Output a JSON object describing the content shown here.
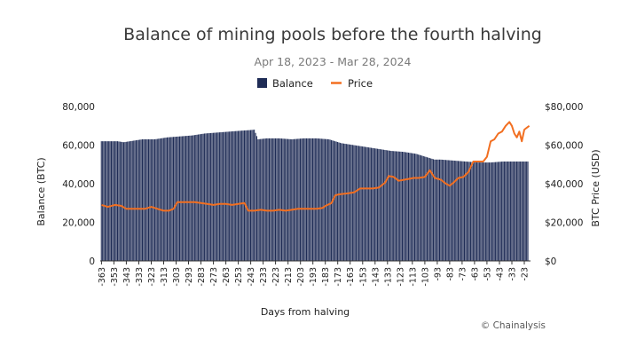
{
  "chart_data": {
    "type": "bar+line",
    "title": "Balance of mining pools before the fourth halving",
    "subtitle": "Apr 18, 2023 - Mar 28, 2024",
    "xlabel": "Days from halving",
    "ylabel_left": "Balance (BTC)",
    "ylabel_right": "BTC Price (USD)",
    "ylim_left": [
      0,
      80000
    ],
    "ylim_right": [
      0,
      80000
    ],
    "yticks_left": [
      "0",
      "20,000",
      "40,000",
      "60,000",
      "80,000"
    ],
    "yticks_right": [
      "$0",
      "$20,000",
      "$40,000",
      "$60,000",
      "$80,000"
    ],
    "xlim": [
      -364,
      -18
    ],
    "x_tick_labels": [
      "-363",
      "-353",
      "-343",
      "-333",
      "-323",
      "-313",
      "-303",
      "-293",
      "-283",
      "-273",
      "-263",
      "-253",
      "-243",
      "-233",
      "-223",
      "-213",
      "-203",
      "-193",
      "-183",
      "-173",
      "-163",
      "-153",
      "-143",
      "-133",
      "-123",
      "-113",
      "-103",
      "-93",
      "-83",
      "-73",
      "-63",
      "-53",
      "-43",
      "-33",
      "-23"
    ],
    "legend": [
      "Balance",
      "Price"
    ],
    "colors": {
      "balance": "#1f2c56",
      "price": "#f26f21",
      "axis": "#333333"
    },
    "series": [
      {
        "name": "Balance",
        "type": "bar",
        "points": [
          [
            -363,
            62000
          ],
          [
            -350,
            62000
          ],
          [
            -345,
            61500
          ],
          [
            -340,
            62000
          ],
          [
            -330,
            63000
          ],
          [
            -320,
            63000
          ],
          [
            -310,
            64000
          ],
          [
            -300,
            64500
          ],
          [
            -290,
            65000
          ],
          [
            -280,
            66000
          ],
          [
            -270,
            66500
          ],
          [
            -260,
            67000
          ],
          [
            -250,
            67500
          ],
          [
            -243,
            67800
          ],
          [
            -240,
            68000
          ],
          [
            -237,
            63000
          ],
          [
            -230,
            63500
          ],
          [
            -220,
            63500
          ],
          [
            -210,
            63000
          ],
          [
            -200,
            63500
          ],
          [
            -190,
            63500
          ],
          [
            -180,
            63000
          ],
          [
            -175,
            62000
          ],
          [
            -170,
            61000
          ],
          [
            -160,
            60000
          ],
          [
            -150,
            59000
          ],
          [
            -140,
            58000
          ],
          [
            -130,
            57000
          ],
          [
            -120,
            56500
          ],
          [
            -110,
            55500
          ],
          [
            -100,
            53500
          ],
          [
            -95,
            52500
          ],
          [
            -90,
            52500
          ],
          [
            -80,
            52000
          ],
          [
            -70,
            51500
          ],
          [
            -60,
            51000
          ],
          [
            -50,
            51000
          ],
          [
            -40,
            51500
          ],
          [
            -30,
            51500
          ],
          [
            -20,
            51500
          ]
        ]
      },
      {
        "name": "Price",
        "type": "line",
        "points": [
          [
            -363,
            29000
          ],
          [
            -358,
            28000
          ],
          [
            -352,
            29000
          ],
          [
            -347,
            28500
          ],
          [
            -343,
            27000
          ],
          [
            -338,
            27000
          ],
          [
            -333,
            27000
          ],
          [
            -328,
            27000
          ],
          [
            -323,
            28000
          ],
          [
            -318,
            27000
          ],
          [
            -313,
            26000
          ],
          [
            -309,
            26000
          ],
          [
            -305,
            27000
          ],
          [
            -302,
            30500
          ],
          [
            -298,
            30500
          ],
          [
            -293,
            30500
          ],
          [
            -288,
            30500
          ],
          [
            -283,
            30000
          ],
          [
            -278,
            29500
          ],
          [
            -273,
            29000
          ],
          [
            -268,
            29500
          ],
          [
            -263,
            29500
          ],
          [
            -258,
            29000
          ],
          [
            -253,
            29500
          ],
          [
            -248,
            30000
          ],
          [
            -245,
            26000
          ],
          [
            -240,
            26000
          ],
          [
            -235,
            26500
          ],
          [
            -230,
            26000
          ],
          [
            -225,
            26000
          ],
          [
            -220,
            26500
          ],
          [
            -215,
            26000
          ],
          [
            -210,
            26500
          ],
          [
            -205,
            27000
          ],
          [
            -200,
            27000
          ],
          [
            -195,
            27000
          ],
          [
            -190,
            27000
          ],
          [
            -185,
            27500
          ],
          [
            -183,
            28500
          ],
          [
            -178,
            30000
          ],
          [
            -175,
            34000
          ],
          [
            -172,
            34500
          ],
          [
            -165,
            35000
          ],
          [
            -160,
            35500
          ],
          [
            -155,
            37500
          ],
          [
            -150,
            37500
          ],
          [
            -145,
            37500
          ],
          [
            -140,
            38000
          ],
          [
            -135,
            40500
          ],
          [
            -132,
            44000
          ],
          [
            -128,
            43500
          ],
          [
            -124,
            41500
          ],
          [
            -120,
            42000
          ],
          [
            -116,
            42500
          ],
          [
            -112,
            43000
          ],
          [
            -108,
            43000
          ],
          [
            -103,
            43500
          ],
          [
            -99,
            47000
          ],
          [
            -95,
            43000
          ],
          [
            -90,
            42000
          ],
          [
            -86,
            40000
          ],
          [
            -83,
            39000
          ],
          [
            -80,
            40500
          ],
          [
            -76,
            43000
          ],
          [
            -72,
            43500
          ],
          [
            -68,
            46000
          ],
          [
            -64,
            51500
          ],
          [
            -60,
            51500
          ],
          [
            -56,
            51500
          ],
          [
            -53,
            54000
          ],
          [
            -50,
            62000
          ],
          [
            -47,
            63000
          ],
          [
            -44,
            66000
          ],
          [
            -41,
            67000
          ],
          [
            -38,
            70000
          ],
          [
            -35,
            72000
          ],
          [
            -33,
            70000
          ],
          [
            -31,
            66000
          ],
          [
            -29,
            64000
          ],
          [
            -27,
            67000
          ],
          [
            -25,
            62000
          ],
          [
            -23,
            68000
          ],
          [
            -21,
            69000
          ],
          [
            -19,
            70000
          ]
        ]
      }
    ],
    "credit": "© Chainalysis"
  }
}
